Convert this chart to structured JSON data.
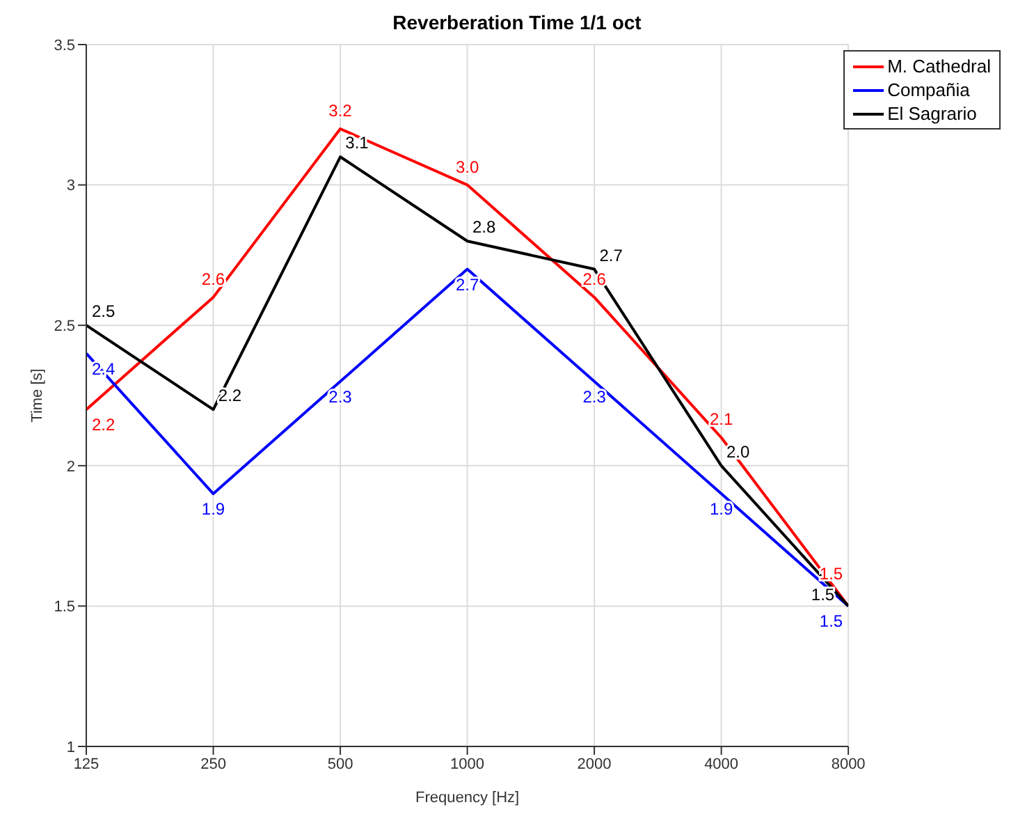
{
  "chart_data": {
    "type": "line",
    "title": "Reverberation Time 1/1 oct",
    "xlabel": "Frequency [Hz]",
    "ylabel": "Time [s]",
    "log": "x",
    "x": [
      125,
      250,
      500,
      1000,
      2000,
      4000,
      8000
    ],
    "xlim": [
      125,
      8000
    ],
    "xticks": [
      125,
      250,
      500,
      1000,
      2000,
      4000,
      8000
    ],
    "ylim": [
      1,
      3.5
    ],
    "yticks": [
      1,
      1.5,
      2,
      2.5,
      3,
      3.5
    ],
    "grid": true,
    "legend": "top right",
    "marker": "none",
    "line_style": "solid",
    "series": [
      {
        "name": "M. Cathedral",
        "color": "#ff0000",
        "values": [
          2.2,
          2.6,
          3.2,
          3.0,
          2.6,
          2.1,
          1.5
        ],
        "value_labels": [
          "2.2",
          "2.6",
          "3.2",
          "3.0",
          "2.6",
          "2.1",
          "1.5"
        ]
      },
      {
        "name": "Compañia",
        "color": "#0000ff",
        "values": [
          2.4,
          1.9,
          2.3,
          2.7,
          2.3,
          1.9,
          1.5
        ],
        "value_labels": [
          "2.4",
          "1.9",
          "2.3",
          "2.7",
          "2.3",
          "1.9",
          "1.5"
        ]
      },
      {
        "name": "El Sagrario",
        "color": "#000000",
        "values": [
          2.5,
          2.2,
          3.1,
          2.8,
          2.7,
          2.0,
          1.5
        ],
        "value_labels": [
          "2.5",
          "2.2",
          "3.1",
          "2.8",
          "2.7",
          "2.0",
          "1.5"
        ]
      }
    ]
  }
}
